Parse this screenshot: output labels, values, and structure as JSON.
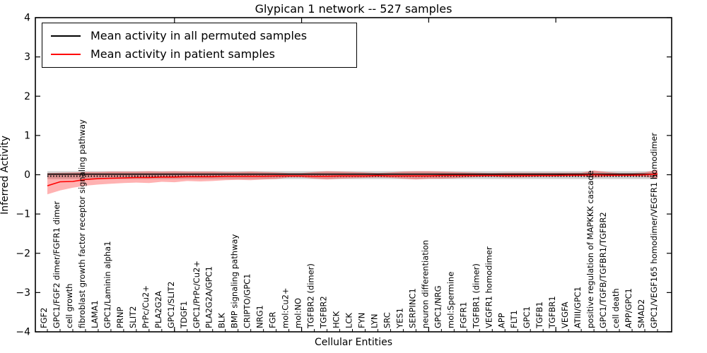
{
  "title": "Glypican 1 network -- 527 samples",
  "legend": {
    "items": [
      {
        "label": "Mean activity in all permuted samples",
        "color": "#000000"
      },
      {
        "label": "Mean activity in patient samples",
        "color": "#ff0000"
      }
    ]
  },
  "axes": {
    "ylabel": "Inferred Activity",
    "xlabel": "Cellular Entities",
    "yticks": [
      4,
      3,
      2,
      1,
      0,
      -1,
      -2,
      -3,
      -4
    ],
    "ylim": [
      -4,
      4
    ]
  },
  "chart_data": {
    "type": "line",
    "title": "Glypican 1 network -- 527 samples",
    "xlabel": "Cellular Entities",
    "ylabel": "Inferred Activity",
    "ylim": [
      -4,
      4
    ],
    "grid": false,
    "legend_position": "upper left",
    "categories": [
      "FGF2",
      "GPC1/FGF2 dimer/FGFR1 dimer",
      "cell growth",
      "fibroblast growth factor receptor signaling pathway",
      "LAMA1",
      "GPC1/Laminin alpha1",
      "PRNP",
      "SLIT2",
      "PrPc/Cu2+",
      "PLA2G2A",
      "GPC1/SLIT2",
      "TDGF1",
      "GPC1/PrPc/Cu2+",
      "PLA2G2A/GPC1",
      "BLK",
      "BMP signaling pathway",
      "CRIPTO/GPC1",
      "NRG1",
      "FGR",
      "mol:Cu2+",
      "mol:NO",
      "TGFBR2 (dimer)",
      "TGFBR2",
      "HCK",
      "LCK",
      "FYN",
      "LYN",
      "SRC",
      "YES1",
      "SERPINC1",
      "neuron differentiation",
      "GPC1/NRG",
      "mol:Spermine",
      "FGFR1",
      "TGFBR1 (dimer)",
      "VEGFR1 homodimer",
      "APP",
      "FLT1",
      "GPC1",
      "TGFB1",
      "TGFBR1",
      "VEGFA",
      "ATIII/GPC1",
      "positive regulation of MAPKKK cascade",
      "GPC1/TGFB/TGFBR1/TGFBR2",
      "cell death",
      "APP/GPC1",
      "SMAD2",
      "GPC1/VEGF165 homodimer/VEGFR1 homodimer"
    ],
    "series": [
      {
        "name": "Mean activity in all permuted samples",
        "color": "#000000",
        "constant_value": 0.015,
        "band_constant_upper": 0.09,
        "band_constant_lower": -0.11,
        "band_color": "rgba(120,120,120,0.35)"
      },
      {
        "name": "Mean activity in patient samples",
        "color": "#ff0000",
        "band_color": "rgba(255,0,0,0.3)",
        "values": [
          -0.28,
          -0.18,
          -0.17,
          -0.12,
          -0.1,
          -0.09,
          -0.08,
          -0.07,
          -0.07,
          -0.06,
          -0.06,
          -0.05,
          -0.05,
          -0.05,
          -0.04,
          -0.04,
          -0.04,
          -0.04,
          -0.03,
          -0.03,
          -0.03,
          -0.04,
          -0.04,
          -0.03,
          -0.03,
          -0.03,
          -0.02,
          -0.03,
          -0.03,
          -0.03,
          -0.03,
          -0.02,
          -0.02,
          -0.02,
          -0.02,
          -0.02,
          -0.02,
          -0.02,
          -0.02,
          -0.02,
          -0.02,
          -0.01,
          -0.01,
          0.0,
          -0.01,
          -0.01,
          -0.01,
          0.0,
          0.02
        ],
        "band_upper": [
          0.04,
          0.05,
          0.06,
          0.07,
          0.07,
          0.08,
          0.08,
          0.08,
          0.09,
          0.08,
          0.09,
          0.08,
          0.08,
          0.08,
          0.07,
          0.07,
          0.08,
          0.07,
          0.06,
          0.04,
          0.04,
          0.07,
          0.09,
          0.08,
          0.07,
          0.06,
          0.04,
          0.06,
          0.08,
          0.09,
          0.09,
          0.08,
          0.07,
          0.06,
          0.05,
          0.04,
          0.05,
          0.05,
          0.05,
          0.05,
          0.05,
          0.05,
          0.05,
          0.11,
          0.07,
          0.04,
          0.04,
          0.06,
          0.13
        ],
        "band_lower": [
          -0.5,
          -0.4,
          -0.33,
          -0.28,
          -0.25,
          -0.23,
          -0.21,
          -0.2,
          -0.21,
          -0.18,
          -0.19,
          -0.16,
          -0.17,
          -0.16,
          -0.14,
          -0.13,
          -0.14,
          -0.12,
          -0.11,
          -0.07,
          -0.07,
          -0.1,
          -0.12,
          -0.1,
          -0.09,
          -0.08,
          -0.07,
          -0.08,
          -0.1,
          -0.12,
          -0.1,
          -0.1,
          -0.09,
          -0.07,
          -0.06,
          -0.05,
          -0.07,
          -0.07,
          -0.06,
          -0.05,
          -0.05,
          -0.05,
          -0.04,
          -0.07,
          -0.05,
          -0.04,
          -0.04,
          -0.05,
          -0.09
        ]
      }
    ],
    "zero_line": {
      "y": -0.035,
      "style": "dotted",
      "color": "#000000"
    },
    "top_axis_tick_indices": [
      10,
      20,
      30,
      40
    ]
  }
}
